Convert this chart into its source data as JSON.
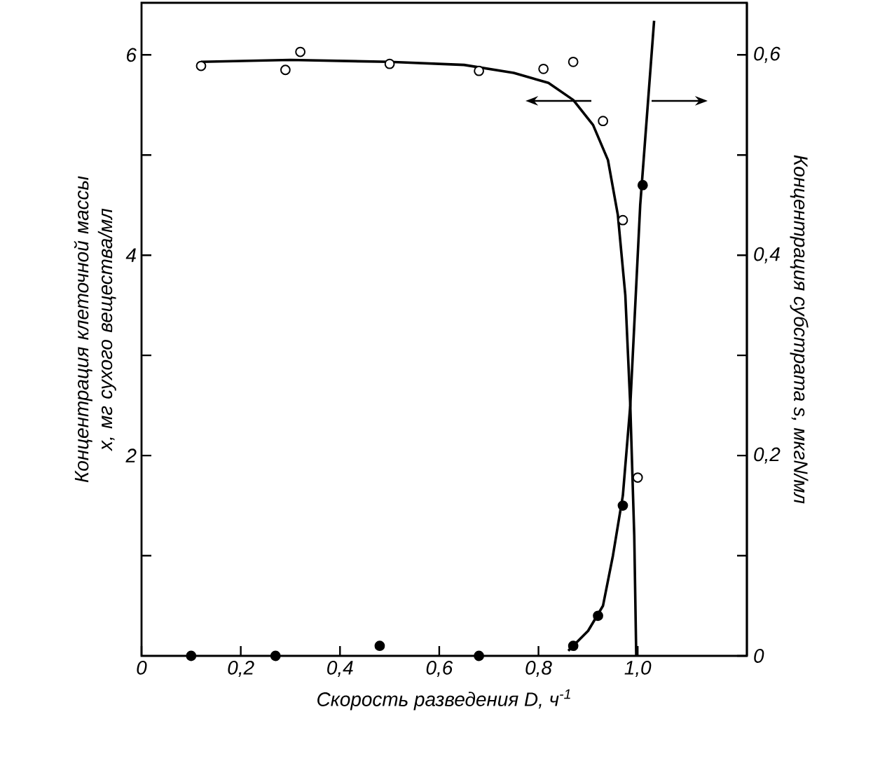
{
  "chart_data": {
    "type": "scatter",
    "xlabel": "Скорость разведения D, ч$^{-1}$",
    "ylabel": "Концентрация клеточной массы x, мг сухого вещества/мл",
    "y2label": "Концентрация субстрата s, мкгN/мл",
    "xlim": [
      0,
      1.22
    ],
    "ylim": [
      0,
      6.52
    ],
    "y2lim": [
      0,
      0.652
    ],
    "xticks": [
      0,
      {
        "value": 0.2,
        "label": "0,2"
      },
      {
        "value": 0.4,
        "label": "0,4"
      },
      {
        "value": 0.6,
        "label": "0,6"
      },
      {
        "value": 0.8,
        "label": "0,8"
      },
      {
        "value": 1.0,
        "label": "1,0"
      }
    ],
    "yticks": [
      {
        "value": 1,
        "label": null
      },
      2,
      {
        "value": 3,
        "label": null
      },
      4,
      {
        "value": 5,
        "label": null
      },
      6
    ],
    "y2ticks": [
      0,
      {
        "value": 0.1,
        "label": null
      },
      {
        "value": 0.2,
        "label": "0,2"
      },
      {
        "value": 0.3,
        "label": null
      },
      {
        "value": 0.4,
        "label": "0,4"
      },
      {
        "value": 0.5,
        "label": null
      },
      {
        "value": 0.6,
        "label": "0,6"
      }
    ],
    "grid": false,
    "series": [
      {
        "marker": "circle",
        "color": "#000000",
        "x": [
          0.12,
          0.29,
          0.32,
          0.5,
          0.68,
          0.81,
          0.87,
          0.93,
          0.97,
          1.0
        ],
        "values": [
          5.89,
          5.85,
          6.03,
          5.91,
          5.84,
          5.86,
          5.93,
          5.34,
          4.35,
          1.78
        ]
      },
      {
        "type": "line",
        "marker": "none",
        "color": "#000000",
        "x": [
          0.12,
          0.3,
          0.5,
          0.65,
          0.75,
          0.82,
          0.87,
          0.91,
          0.94,
          0.96,
          0.975,
          0.985,
          0.993,
          0.997
        ],
        "values": [
          5.93,
          5.95,
          5.93,
          5.9,
          5.82,
          5.72,
          5.55,
          5.3,
          4.95,
          4.4,
          3.6,
          2.5,
          1.2,
          0
        ]
      },
      {
        "marker": "circle",
        "axis": "y2",
        "color": "#000000",
        "x": [
          0.1,
          0.27,
          0.48,
          0.68,
          0.87,
          0.92,
          0.97,
          1.01
        ],
        "values": [
          0,
          0,
          0.01,
          0,
          0.01,
          0.04,
          0.15,
          0.47
        ]
      },
      {
        "type": "line",
        "marker": "none",
        "axis": "y2",
        "color": "#000000",
        "x": [
          0.86,
          0.9,
          0.93,
          0.95,
          0.97,
          0.985,
          0.995,
          1.005,
          1.033
        ],
        "values": [
          0.005,
          0.025,
          0.05,
          0.1,
          0.16,
          0.25,
          0.35,
          0.45,
          0.634
        ]
      }
    ]
  }
}
